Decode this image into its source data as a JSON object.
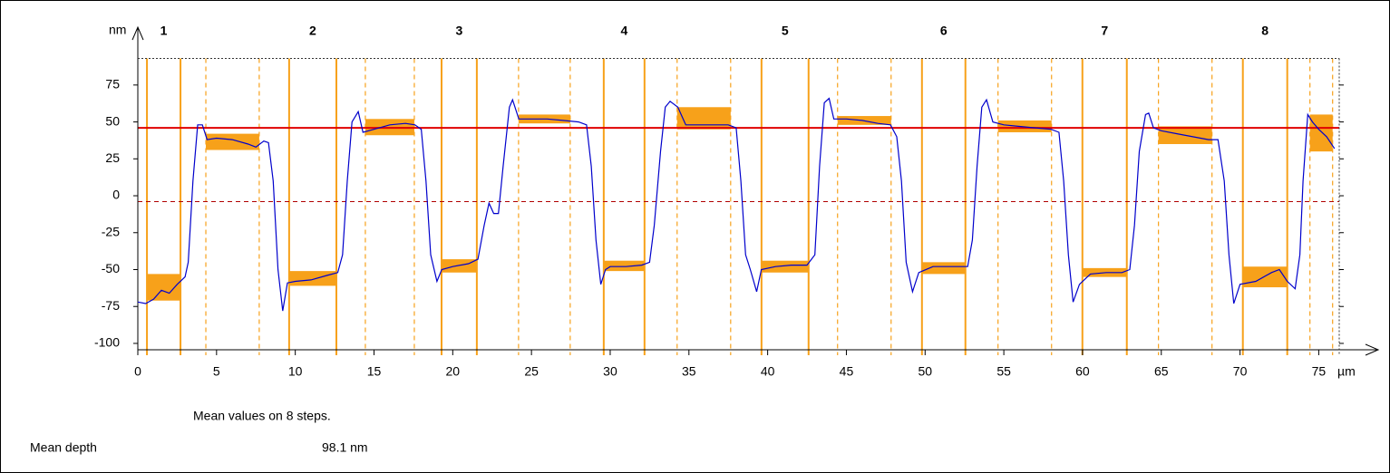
{
  "chart_data": {
    "type": "line",
    "x_unit": "µm",
    "y_unit": "nm",
    "xlim": [
      0,
      76.3
    ],
    "ylim": [
      -108,
      93
    ],
    "xticks": [
      0,
      5,
      10,
      15,
      20,
      25,
      30,
      35,
      40,
      45,
      50,
      55,
      60,
      65,
      70,
      75
    ],
    "yticks": [
      -100,
      -75,
      -50,
      -25,
      0,
      25,
      50,
      75
    ],
    "x": [
      0,
      0.5,
      1,
      1.5,
      2,
      2.5,
      3,
      3.2,
      3.5,
      3.8,
      4.1,
      4.4,
      5,
      6,
      7,
      7.5,
      8,
      8.3,
      8.6,
      8.9,
      9.2,
      9.5,
      10,
      11,
      12,
      12.7,
      13,
      13.3,
      13.6,
      14,
      14.3,
      15,
      16,
      17,
      17.6,
      18,
      18.3,
      18.6,
      19,
      19.3,
      20,
      21,
      21.6,
      22,
      22.3,
      22.6,
      22.9,
      23.2,
      23.6,
      23.8,
      24.2,
      25,
      26,
      27,
      28,
      28.5,
      28.8,
      29.1,
      29.4,
      29.7,
      30,
      31,
      32,
      32.5,
      32.8,
      33.2,
      33.5,
      33.8,
      34.3,
      34.8,
      35.5,
      36.5,
      37.5,
      38,
      38.3,
      38.6,
      38.9,
      39.3,
      39.6,
      40.5,
      41.5,
      42.5,
      43,
      43.3,
      43.6,
      43.9,
      44.2,
      45,
      46,
      47,
      47.8,
      48.2,
      48.5,
      48.8,
      49.2,
      49.6,
      50.5,
      51.5,
      52.7,
      53,
      53.3,
      53.6,
      53.9,
      54.3,
      55,
      56,
      57,
      58,
      58.5,
      58.8,
      59.1,
      59.4,
      59.8,
      60.5,
      61.5,
      62.5,
      63,
      63.3,
      63.6,
      64,
      64.2,
      64.5,
      65,
      66,
      67,
      68,
      68.6,
      69,
      69.3,
      69.6,
      70,
      71,
      72,
      72.5,
      73,
      73.5,
      73.8,
      74,
      74.3,
      74.6,
      75,
      75.5,
      76
    ],
    "series": [
      {
        "color": "#0000cc",
        "values": [
          -72,
          -73,
          -70,
          -64,
          -66,
          -60,
          -55,
          -45,
          10,
          48,
          48,
          38,
          39,
          38,
          35,
          33,
          37,
          36,
          10,
          -50,
          -78,
          -59,
          -58,
          -57,
          -54,
          -52,
          -40,
          10,
          50,
          57,
          43,
          45,
          48,
          49,
          48,
          45,
          10,
          -40,
          -58,
          -50,
          -48,
          -46,
          -43,
          -20,
          -5,
          -12,
          -12,
          20,
          60,
          65,
          52,
          52,
          52,
          51,
          50,
          48,
          20,
          -30,
          -60,
          -50,
          -48,
          -48,
          -47,
          -45,
          -20,
          30,
          60,
          64,
          60,
          48,
          48,
          48,
          48,
          46,
          10,
          -40,
          -50,
          -65,
          -50,
          -48,
          -47,
          -47,
          -40,
          20,
          63,
          66,
          52,
          52,
          51,
          49,
          48,
          40,
          10,
          -45,
          -65,
          -52,
          -48,
          -48,
          -48,
          -30,
          20,
          60,
          65,
          50,
          48,
          47,
          46,
          45,
          43,
          10,
          -40,
          -72,
          -60,
          -53,
          -52,
          -52,
          -50,
          -20,
          30,
          55,
          56,
          46,
          44,
          42,
          40,
          38,
          38,
          10,
          -40,
          -73,
          -60,
          -58,
          -52,
          -50,
          -58,
          -63,
          -40,
          10,
          55,
          50,
          45,
          40,
          32
        ]
      }
    ],
    "reference_line": {
      "value": 46,
      "color": "#e00000"
    },
    "zero_line": {
      "value": -4,
      "color": "#b00000"
    },
    "box_color": "#f7a11a",
    "steps": [
      {
        "label": "1",
        "low": {
          "x0": 0.58,
          "x1": 2.71,
          "y0": -71,
          "y1": -53
        },
        "high": {
          "x0": 4.32,
          "x1": 7.71,
          "y0": 31,
          "y1": 42
        }
      },
      {
        "label": "2",
        "low": {
          "x0": 9.61,
          "x1": 12.61,
          "y0": -61,
          "y1": -51
        },
        "high": {
          "x0": 14.45,
          "x1": 17.56,
          "y0": 41,
          "y1": 52
        }
      },
      {
        "label": "3",
        "low": {
          "x0": 19.29,
          "x1": 21.53,
          "y0": -52,
          "y1": -43
        },
        "high": {
          "x0": 24.18,
          "x1": 27.46,
          "y0": 49,
          "y1": 55
        }
      },
      {
        "label": "4",
        "low": {
          "x0": 29.59,
          "x1": 32.18,
          "y0": -51,
          "y1": -44
        },
        "high": {
          "x0": 34.25,
          "x1": 37.65,
          "y0": 45,
          "y1": 60
        }
      },
      {
        "label": "5",
        "low": {
          "x0": 39.61,
          "x1": 42.6,
          "y0": -52,
          "y1": -44
        },
        "high": {
          "x0": 44.44,
          "x1": 47.84,
          "y0": 48,
          "y1": 54
        }
      },
      {
        "label": "6",
        "low": {
          "x0": 49.8,
          "x1": 52.56,
          "y0": -53,
          "y1": -45
        },
        "high": {
          "x0": 54.63,
          "x1": 58.03,
          "y0": 43,
          "y1": 51
        }
      },
      {
        "label": "7",
        "low": {
          "x0": 59.99,
          "x1": 62.81,
          "y0": -55,
          "y1": -49
        },
        "high": {
          "x0": 64.82,
          "x1": 68.22,
          "y0": 35,
          "y1": 47
        }
      },
      {
        "label": "8",
        "low": {
          "x0": 70.18,
          "x1": 73.0,
          "y0": -62,
          "y1": -48
        },
        "high": {
          "x0": 74.44,
          "x1": 75.88,
          "y0": 30,
          "y1": 55
        }
      }
    ]
  },
  "summary": {
    "title": "Mean values on 8 steps.",
    "label": "Mean depth",
    "value": "98.1 nm"
  }
}
